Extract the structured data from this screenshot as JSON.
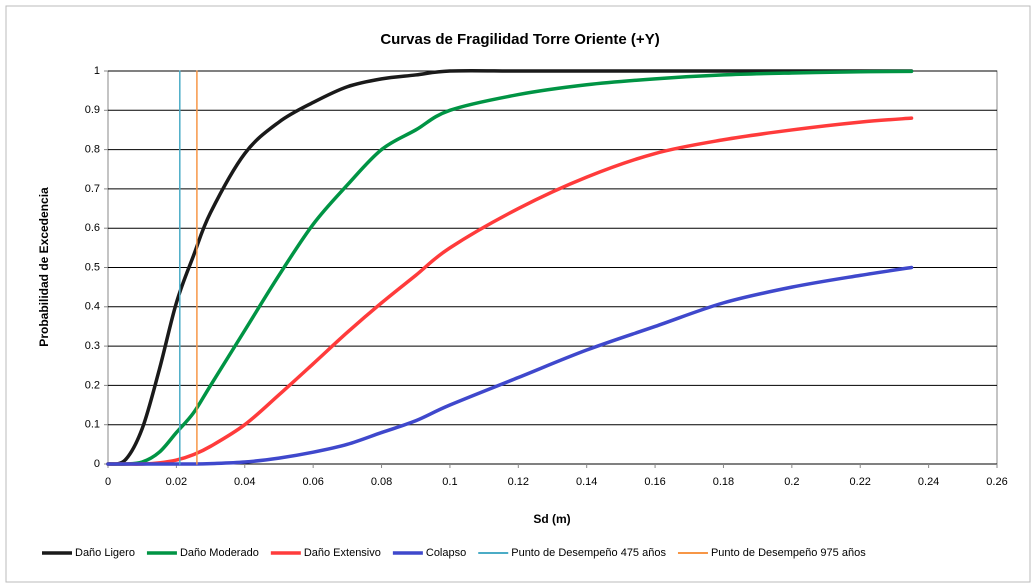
{
  "chart_data": {
    "type": "line",
    "title": "Curvas de Fragilidad  Torre Oriente (+Y)",
    "xlabel": "Sd (m)",
    "ylabel": "Probabilidad de Excedencia",
    "x": [
      0,
      0.005,
      0.01,
      0.015,
      0.02,
      0.025,
      0.03,
      0.04,
      0.05,
      0.06,
      0.07,
      0.08,
      0.09,
      0.1,
      0.12,
      0.14,
      0.16,
      0.18,
      0.2,
      0.22,
      0.235
    ],
    "series": [
      {
        "name": "Daño Ligero",
        "color": "#1a1a1a",
        "values": [
          0,
          0.01,
          0.09,
          0.24,
          0.41,
          0.53,
          0.64,
          0.79,
          0.87,
          0.92,
          0.96,
          0.98,
          0.99,
          1,
          1,
          1,
          1,
          1,
          1,
          1,
          1
        ]
      },
      {
        "name": "Daño Moderado",
        "color": "#009444",
        "values": [
          0,
          0,
          0.005,
          0.03,
          0.08,
          0.13,
          0.2,
          0.34,
          0.48,
          0.61,
          0.71,
          0.8,
          0.85,
          0.9,
          0.94,
          0.965,
          0.98,
          0.99,
          0.995,
          0.998,
          0.999
        ]
      },
      {
        "name": "Daño Extensivo",
        "color": "#ff3b3b",
        "values": [
          0,
          0,
          0,
          0.003,
          0.01,
          0.024,
          0.045,
          0.1,
          0.176,
          0.255,
          0.335,
          0.41,
          0.48,
          0.55,
          0.65,
          0.73,
          0.79,
          0.825,
          0.85,
          0.87,
          0.88
        ]
      },
      {
        "name": "Colapso",
        "color": "#3f48cc",
        "values": [
          0,
          0,
          0,
          0,
          0,
          0,
          0.001,
          0.005,
          0.015,
          0.03,
          0.05,
          0.08,
          0.11,
          0.15,
          0.22,
          0.29,
          0.35,
          0.41,
          0.45,
          0.48,
          0.5
        ]
      },
      {
        "name": "Punto de Desempeño 475 años",
        "color": "#4bacc6",
        "x": [
          0.021,
          0.021
        ],
        "values": [
          0,
          1
        ]
      },
      {
        "name": "Punto de Desempeño 975 años",
        "color": "#f79646",
        "x": [
          0.026,
          0.026
        ],
        "values": [
          0,
          1
        ]
      }
    ],
    "xlim": [
      0,
      0.26
    ],
    "xticks": [
      0,
      0.02,
      0.04,
      0.06,
      0.08,
      0.1,
      0.12,
      0.14,
      0.16,
      0.18,
      0.2,
      0.22,
      0.24,
      0.26
    ],
    "ylim": [
      0,
      1
    ],
    "yticks": [
      0,
      0.1,
      0.2,
      0.3,
      0.4,
      0.5,
      0.6,
      0.7,
      0.8,
      0.9,
      1
    ],
    "grid": true,
    "legend": "bottom"
  }
}
